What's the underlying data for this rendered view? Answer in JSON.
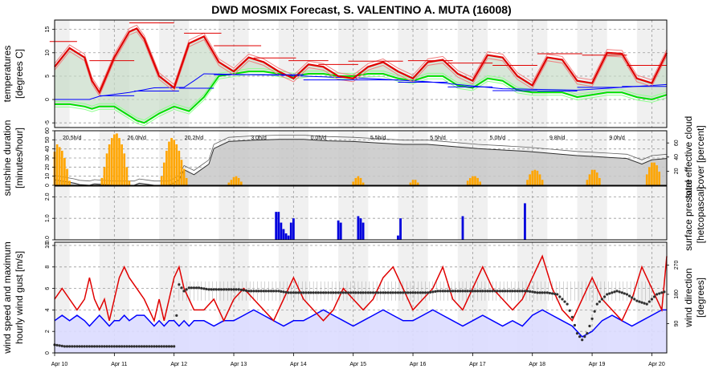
{
  "title": "DWD MOSMIX Forecast, S. VALENTINO A. MUTA (16008)",
  "colors": {
    "temp": "#e00000",
    "dew": "#00e000",
    "blue": "#0000ff",
    "sun": "#ffa500",
    "rain": "#0000dd",
    "cloud_fill": "#c8c8c8",
    "night": "#f0f0f0",
    "wind_fill": "#dcdcff",
    "dir": "#303030"
  },
  "chart_data": [
    {
      "type": "line",
      "name": "temperatures",
      "ylabel_lines": [
        "temperatures",
        "[degrees C]"
      ],
      "ylim": [
        -6,
        17
      ],
      "y_ticks": [
        -5,
        0,
        5,
        10,
        15
      ],
      "x_ticks": [
        "Apr 10",
        "Apr 11",
        "Apr 12",
        "Apr 13",
        "Apr 14",
        "Apr 15",
        "Apr 16",
        "Apr 17",
        "Apr 18",
        "Apr 19",
        "Apr 20"
      ],
      "x_hours": [
        0,
        6,
        12,
        15,
        18,
        24,
        30,
        33,
        36,
        42,
        48,
        54,
        60,
        66,
        72,
        78,
        84,
        90,
        96,
        102,
        108,
        114,
        120,
        126,
        132,
        138,
        144,
        150,
        156,
        162,
        168,
        174,
        180,
        186,
        192,
        198,
        204,
        210,
        216,
        222,
        228,
        234,
        240,
        246
      ],
      "temperature": [
        7,
        11,
        9,
        4,
        1.5,
        9,
        14.5,
        15.2,
        13,
        5,
        2.5,
        12,
        13.5,
        8,
        6,
        9,
        8,
        6,
        4.5,
        7.5,
        7,
        5,
        4.5,
        7,
        8,
        6,
        4.5,
        8,
        8.5,
        5.5,
        4,
        9.5,
        9,
        5,
        3,
        9,
        8.5,
        4,
        3.5,
        10,
        9.8,
        4.5,
        3.5,
        10
      ],
      "dew_point": [
        -1,
        -1,
        -1.5,
        -2,
        -1.5,
        -1.5,
        -3.5,
        -4.5,
        -5,
        -3,
        -1.5,
        -2.5,
        0.5,
        5,
        5.5,
        6,
        6,
        5.5,
        5,
        5.5,
        5.5,
        5,
        5,
        5.5,
        5.5,
        4.5,
        4,
        5,
        5,
        3,
        2.5,
        4.5,
        4,
        2,
        1.5,
        1.5,
        1.5,
        0.5,
        1,
        1.5,
        1.5,
        0.5,
        0,
        1
      ],
      "daily_max": [
        {
          "x0": -2,
          "x1": 9,
          "y": 12.4
        },
        {
          "x0": 14,
          "x1": 32,
          "y": 8.3
        },
        {
          "x0": 30,
          "x1": 48,
          "y": 16.4
        },
        {
          "x0": 52,
          "x1": 67,
          "y": 14.2
        },
        {
          "x0": 64,
          "x1": 83,
          "y": 11.5
        },
        {
          "x0": 80,
          "x1": 97,
          "y": 8.9
        },
        {
          "x0": 94,
          "x1": 110,
          "y": 8.3
        },
        {
          "x0": 106,
          "x1": 122,
          "y": 7.5
        },
        {
          "x0": 118,
          "x1": 140,
          "y": 8.2
        },
        {
          "x0": 142,
          "x1": 160,
          "y": 8.3
        },
        {
          "x0": 158,
          "x1": 176,
          "y": 7.8
        },
        {
          "x0": 176,
          "x1": 194,
          "y": 7.3
        },
        {
          "x0": 194,
          "x1": 212,
          "y": 9.8
        },
        {
          "x0": 212,
          "x1": 230,
          "y": 9.5
        },
        {
          "x0": 230,
          "x1": 246,
          "y": 7.3
        }
      ],
      "daily_min": [
        {
          "x0": 0,
          "x1": 14,
          "y": 0
        },
        {
          "x0": 18,
          "x1": 32,
          "y": 0.8
        },
        {
          "x0": 32,
          "x1": 50,
          "y": 1.8
        },
        {
          "x0": 50,
          "x1": 64,
          "y": 2.4
        },
        {
          "x0": 64,
          "x1": 82,
          "y": 5.3
        },
        {
          "x0": 82,
          "x1": 100,
          "y": 5.3
        },
        {
          "x0": 100,
          "x1": 118,
          "y": 4.2
        },
        {
          "x0": 118,
          "x1": 138,
          "y": 4.2
        },
        {
          "x0": 138,
          "x1": 158,
          "y": 3.7
        },
        {
          "x0": 158,
          "x1": 176,
          "y": 2.7
        },
        {
          "x0": 176,
          "x1": 194,
          "y": 1.9
        },
        {
          "x0": 194,
          "x1": 210,
          "y": 1.8
        },
        {
          "x0": 210,
          "x1": 228,
          "y": 2.6
        },
        {
          "x0": 228,
          "x1": 246,
          "y": 2.8
        }
      ]
    },
    {
      "type": "bar",
      "name": "sunshine duration",
      "ylabel_lines": [
        "sunshine duration",
        "[minutes/hour]"
      ],
      "right_label_lines": [
        "total effective cloud",
        "cover [percent]"
      ],
      "ylim": [
        0,
        60
      ],
      "y_ticks": [
        0,
        10,
        20,
        30,
        40,
        50,
        60
      ],
      "right_ticks": [
        20,
        40,
        60
      ],
      "sun_hours": [
        {
          "h": 0,
          "v": 37
        },
        {
          "h": 1,
          "v": 45
        },
        {
          "h": 2,
          "v": 42
        },
        {
          "h": 3,
          "v": 38
        },
        {
          "h": 4,
          "v": 30
        },
        {
          "h": 5,
          "v": 18
        },
        {
          "h": 6,
          "v": 5
        },
        {
          "h": 19,
          "v": 8
        },
        {
          "h": 20,
          "v": 20
        },
        {
          "h": 21,
          "v": 35
        },
        {
          "h": 22,
          "v": 45
        },
        {
          "h": 23,
          "v": 52
        },
        {
          "h": 24,
          "v": 56
        },
        {
          "h": 25,
          "v": 57
        },
        {
          "h": 26,
          "v": 52
        },
        {
          "h": 27,
          "v": 45
        },
        {
          "h": 28,
          "v": 35
        },
        {
          "h": 29,
          "v": 20
        },
        {
          "h": 30,
          "v": 5
        },
        {
          "h": 43,
          "v": 10
        },
        {
          "h": 44,
          "v": 25
        },
        {
          "h": 45,
          "v": 38
        },
        {
          "h": 46,
          "v": 48
        },
        {
          "h": 47,
          "v": 52
        },
        {
          "h": 48,
          "v": 50
        },
        {
          "h": 49,
          "v": 45
        },
        {
          "h": 50,
          "v": 38
        },
        {
          "h": 51,
          "v": 28
        },
        {
          "h": 52,
          "v": 18
        },
        {
          "h": 53,
          "v": 8
        },
        {
          "h": 70,
          "v": 3
        },
        {
          "h": 71,
          "v": 6
        },
        {
          "h": 72,
          "v": 9
        },
        {
          "h": 73,
          "v": 10
        },
        {
          "h": 74,
          "v": 8
        },
        {
          "h": 75,
          "v": 4
        },
        {
          "h": 120,
          "v": 4
        },
        {
          "h": 121,
          "v": 8
        },
        {
          "h": 122,
          "v": 10
        },
        {
          "h": 123,
          "v": 8
        },
        {
          "h": 124,
          "v": 3
        },
        {
          "h": 143,
          "v": 3
        },
        {
          "h": 144,
          "v": 6
        },
        {
          "h": 145,
          "v": 6
        },
        {
          "h": 146,
          "v": 3
        },
        {
          "h": 166,
          "v": 5
        },
        {
          "h": 167,
          "v": 8
        },
        {
          "h": 168,
          "v": 10
        },
        {
          "h": 169,
          "v": 10
        },
        {
          "h": 170,
          "v": 8
        },
        {
          "h": 171,
          "v": 4
        },
        {
          "h": 190,
          "v": 6
        },
        {
          "h": 191,
          "v": 12
        },
        {
          "h": 192,
          "v": 16
        },
        {
          "h": 193,
          "v": 17
        },
        {
          "h": 194,
          "v": 16
        },
        {
          "h": 195,
          "v": 12
        },
        {
          "h": 196,
          "v": 6
        },
        {
          "h": 214,
          "v": 6
        },
        {
          "h": 215,
          "v": 12
        },
        {
          "h": 216,
          "v": 17
        },
        {
          "h": 217,
          "v": 17
        },
        {
          "h": 218,
          "v": 14
        },
        {
          "h": 219,
          "v": 8
        },
        {
          "h": 238,
          "v": 12
        },
        {
          "h": 239,
          "v": 20
        },
        {
          "h": 240,
          "v": 25
        },
        {
          "h": 241,
          "v": 25
        },
        {
          "h": 242,
          "v": 22
        },
        {
          "h": 243,
          "v": 15
        }
      ],
      "cloud_x": [
        0,
        8,
        10,
        14,
        16,
        24,
        28,
        32,
        34,
        38,
        40,
        46,
        50,
        52,
        56,
        62,
        64,
        70,
        80,
        90,
        100,
        110,
        120,
        130,
        140,
        150,
        160,
        170,
        180,
        190,
        200,
        210,
        220,
        230,
        236,
        240,
        246
      ],
      "cloud_y": [
        8,
        3,
        1,
        0,
        2,
        0,
        0,
        0,
        3,
        1,
        0,
        0,
        8,
        22,
        15,
        30,
        52,
        62,
        64,
        65,
        65,
        63,
        62,
        60,
        58,
        58,
        55,
        52,
        50,
        48,
        45,
        42,
        40,
        38,
        30,
        36,
        38
      ],
      "daily_sun": [
        {
          "h": 7,
          "text": "20.5h/d"
        },
        {
          "h": 33,
          "text": "26.0h/d"
        },
        {
          "h": 56,
          "text": "20.2h/d"
        },
        {
          "h": 82,
          "text": "3.0h/d"
        },
        {
          "h": 106,
          "text": "0.0h/d"
        },
        {
          "h": 130,
          "text": "5.5h/d"
        },
        {
          "h": 154,
          "text": "5.5h/d"
        },
        {
          "h": 178,
          "text": "5.0h/d"
        },
        {
          "h": 202,
          "text": "9.8h/d"
        },
        {
          "h": 226,
          "text": "9.0h/d"
        }
      ]
    },
    {
      "type": "bar",
      "name": "precipitation",
      "right_label_lines": [
        "surface pressure",
        "[hetcopascal]"
      ],
      "ylim": [
        0,
        2.5
      ],
      "y_ticks": [
        0.0,
        1.0,
        2.0
      ],
      "y_tick_labels": [
        "0.0",
        "1.0",
        "2.0"
      ],
      "rain_hours": [
        {
          "h": 89,
          "v": 1.3
        },
        {
          "h": 90,
          "v": 1.3
        },
        {
          "h": 91,
          "v": 0.8
        },
        {
          "h": 92,
          "v": 0.5
        },
        {
          "h": 93,
          "v": 0.3
        },
        {
          "h": 94,
          "v": 0.2
        },
        {
          "h": 95,
          "v": 0.8
        },
        {
          "h": 96,
          "v": 1.0
        },
        {
          "h": 114,
          "v": 0.9
        },
        {
          "h": 115,
          "v": 0.8
        },
        {
          "h": 122,
          "v": 1.1
        },
        {
          "h": 123,
          "v": 1.0
        },
        {
          "h": 124,
          "v": 0.8
        },
        {
          "h": 138,
          "v": 0.2
        },
        {
          "h": 139,
          "v": 1.0
        },
        {
          "h": 164,
          "v": 1.1
        },
        {
          "h": 189,
          "v": 1.7
        }
      ]
    },
    {
      "type": "line",
      "name": "wind",
      "ylabel_lines": [
        "wind speed and maximum",
        "hourly wind gust [m/s]"
      ],
      "right_label_lines": [
        "wind direction",
        "[degrees]"
      ],
      "ylim": [
        0,
        10.3
      ],
      "y_ticks": [
        0,
        2,
        4,
        6,
        8,
        10
      ],
      "right_ticks": [
        90,
        180,
        270
      ],
      "dir_range": [
        0,
        340
      ],
      "wind_x": [
        0,
        3,
        6,
        9,
        12,
        14,
        16,
        18,
        20,
        22,
        24,
        26,
        28,
        30,
        33,
        36,
        38,
        40,
        42,
        44,
        46,
        48,
        50,
        52,
        54,
        56,
        60,
        64,
        68,
        72,
        76,
        80,
        84,
        88,
        92,
        96,
        100,
        104,
        108,
        112,
        116,
        120,
        124,
        128,
        132,
        136,
        140,
        144,
        148,
        152,
        156,
        160,
        164,
        168,
        172,
        176,
        180,
        184,
        188,
        192,
        196,
        200,
        204,
        208,
        212,
        216,
        220,
        224,
        228,
        232,
        236,
        240,
        244,
        246
      ],
      "wind_speed": [
        3,
        3.5,
        3,
        3.5,
        3,
        2.5,
        3,
        3.5,
        3,
        2.5,
        3,
        3,
        3.5,
        3,
        3.5,
        3.5,
        3,
        2.5,
        3,
        2.5,
        3,
        3,
        2.5,
        3,
        2.5,
        3,
        3,
        2.5,
        3,
        3,
        3.5,
        4,
        3.5,
        3,
        2.5,
        3,
        3,
        3.5,
        4,
        3.5,
        3,
        2.5,
        3,
        3.5,
        4,
        3.5,
        3,
        3,
        3.5,
        4,
        3.5,
        3,
        2.5,
        3,
        3.5,
        3,
        2.5,
        3,
        2.5,
        3.5,
        4,
        3.5,
        3,
        2.5,
        1.5,
        2,
        3,
        3.5,
        3,
        2.5,
        3,
        3.5,
        4,
        4
      ],
      "wind_gust": [
        5,
        6,
        5,
        4,
        5,
        7,
        5,
        4,
        5,
        3,
        5,
        7,
        8,
        7,
        6,
        5,
        4,
        3,
        5,
        3,
        5,
        7,
        8,
        6,
        5,
        4,
        4,
        5,
        3,
        5,
        6,
        5,
        4,
        3,
        5,
        7,
        5,
        4,
        3,
        4,
        6,
        5,
        4,
        5,
        7,
        8,
        6,
        4,
        5,
        6,
        8,
        5,
        4,
        6,
        8,
        6,
        5,
        4,
        5,
        7,
        9,
        6,
        4,
        3,
        5,
        7,
        5,
        4,
        3,
        5,
        8,
        6,
        4,
        9
      ],
      "wind_dir_x": [
        0,
        4,
        8,
        12,
        16,
        20,
        24,
        28,
        32,
        36,
        40,
        44,
        48,
        50,
        52,
        54,
        58,
        62,
        66,
        70,
        74,
        78,
        82,
        86,
        90,
        94,
        98,
        102,
        106,
        110,
        114,
        118,
        122,
        126,
        130,
        134,
        138,
        142,
        146,
        150,
        154,
        158,
        162,
        166,
        170,
        174,
        178,
        182,
        186,
        190,
        194,
        198,
        202,
        206,
        208,
        210,
        212,
        214,
        218,
        222,
        226,
        230,
        234,
        238,
        242,
        246
      ],
      "wind_dir": [
        25,
        20,
        20,
        20,
        20,
        20,
        20,
        20,
        20,
        20,
        20,
        20,
        20,
        210,
        190,
        200,
        200,
        195,
        195,
        195,
        195,
        190,
        190,
        190,
        190,
        185,
        185,
        185,
        185,
        185,
        185,
        185,
        185,
        185,
        185,
        185,
        185,
        185,
        185,
        185,
        190,
        190,
        190,
        190,
        190,
        190,
        190,
        190,
        190,
        190,
        185,
        185,
        180,
        150,
        110,
        60,
        40,
        60,
        150,
        180,
        190,
        180,
        160,
        150,
        180,
        190
      ]
    }
  ]
}
